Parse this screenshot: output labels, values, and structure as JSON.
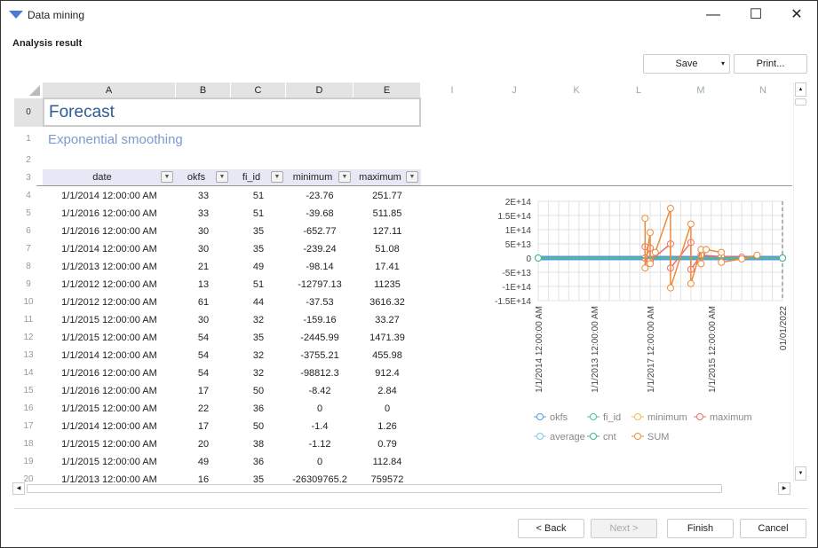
{
  "window": {
    "title": "Data mining",
    "minimize": "—",
    "maximize": "☐",
    "close": "✕"
  },
  "section_title": "Analysis result",
  "toolbar": {
    "save": "Save",
    "save_arrow": "▾",
    "print": "Print..."
  },
  "columns_active": [
    "A",
    "B",
    "C",
    "D",
    "E"
  ],
  "columns_inactive": [
    "I",
    "J",
    "K",
    "L",
    "M",
    "N"
  ],
  "sheet": {
    "title": "Forecast",
    "subtitle": "Exponential smoothing",
    "row_numbers": [
      "0",
      "1",
      "2",
      "3"
    ],
    "headers": [
      "date",
      "okfs",
      "fi_id",
      "minimum",
      "maximum"
    ],
    "rows": [
      [
        "4",
        "1/1/2014 12:00:00 AM",
        "33",
        "51",
        "-23.76",
        "251.77"
      ],
      [
        "5",
        "1/1/2016 12:00:00 AM",
        "33",
        "51",
        "-39.68",
        "511.85"
      ],
      [
        "6",
        "1/1/2016 12:00:00 AM",
        "30",
        "35",
        "-652.77",
        "127.11"
      ],
      [
        "7",
        "1/1/2014 12:00:00 AM",
        "30",
        "35",
        "-239.24",
        "51.08"
      ],
      [
        "8",
        "1/1/2013 12:00:00 AM",
        "21",
        "49",
        "-98.14",
        "17.41"
      ],
      [
        "9",
        "1/1/2012 12:00:00 AM",
        "13",
        "51",
        "-12797.13",
        "11235"
      ],
      [
        "10",
        "1/1/2012 12:00:00 AM",
        "61",
        "44",
        "-37.53",
        "3616.32"
      ],
      [
        "11",
        "1/1/2015 12:00:00 AM",
        "30",
        "32",
        "-159.16",
        "33.27"
      ],
      [
        "12",
        "1/1/2015 12:00:00 AM",
        "54",
        "35",
        "-2445.99",
        "1471.39"
      ],
      [
        "13",
        "1/1/2014 12:00:00 AM",
        "54",
        "32",
        "-3755.21",
        "455.98"
      ],
      [
        "14",
        "1/1/2016 12:00:00 AM",
        "54",
        "32",
        "-98812.3",
        "912.4"
      ],
      [
        "15",
        "1/1/2016 12:00:00 AM",
        "17",
        "50",
        "-8.42",
        "2.84"
      ],
      [
        "16",
        "1/1/2015 12:00:00 AM",
        "22",
        "36",
        "0",
        "0"
      ],
      [
        "17",
        "1/1/2014 12:00:00 AM",
        "17",
        "50",
        "-1.4",
        "1.26"
      ],
      [
        "18",
        "1/1/2015 12:00:00 AM",
        "20",
        "38",
        "-1.12",
        "0.79"
      ],
      [
        "19",
        "1/1/2015 12:00:00 AM",
        "49",
        "36",
        "0",
        "112.84"
      ],
      [
        "20",
        "1/1/2013 12:00:00 AM",
        "16",
        "35",
        "-26309765.2",
        "759572"
      ]
    ]
  },
  "chart_data": {
    "type": "line",
    "ylim": [
      -150000000000000.0,
      200000000000000.0
    ],
    "yticks": [
      "2E+14",
      "1.5E+14",
      "1E+14",
      "5E+13",
      "0",
      "-5E+13",
      "-1E+14",
      "-1.5E+14"
    ],
    "ytick_values": [
      200000000000000.0,
      150000000000000.0,
      100000000000000.0,
      50000000000000.0,
      0,
      -50000000000000.0,
      -100000000000000.0,
      -150000000000000.0
    ],
    "xticks": [
      "1/1/2014 12:00:00 AM",
      "1/1/2013 12:00:00 AM",
      "1/1/2017 12:00:00 AM",
      "1/1/2015 12:00:00 AM",
      "01/01/2022"
    ],
    "grid": true,
    "legend": "bottom",
    "series": [
      {
        "name": "okfs",
        "color": "#5b9bd5",
        "points": [
          [
            0,
            0
          ],
          [
            48,
            0
          ]
        ]
      },
      {
        "name": "fi_id",
        "color": "#4ec38f",
        "points": [
          [
            0,
            0
          ],
          [
            48,
            0
          ]
        ]
      },
      {
        "name": "minimum",
        "color": "#f0c04a",
        "points": [
          [
            0,
            0
          ],
          [
            48,
            0
          ]
        ]
      },
      {
        "name": "maximum",
        "color": "#f26b6b",
        "points": [
          [
            21,
            40000000000000.0
          ],
          [
            21,
            0
          ],
          [
            22,
            35000000000000.0
          ],
          [
            22,
            -10000000000000.0
          ],
          [
            26,
            50000000000000.0
          ],
          [
            26,
            -35000000000000.0
          ],
          [
            30,
            55000000000000.0
          ],
          [
            30,
            -40000000000000.0
          ],
          [
            32,
            10000000000000.0
          ],
          [
            36,
            5000000000000.0
          ],
          [
            40,
            3000000000000.0
          ]
        ]
      },
      {
        "name": "average",
        "color": "#7ec8ec",
        "points": [
          [
            0,
            0
          ],
          [
            48,
            0
          ]
        ]
      },
      {
        "name": "cnt",
        "color": "#3fb58e",
        "points": [
          [
            0,
            0
          ],
          [
            48,
            0
          ]
        ]
      },
      {
        "name": "SUM",
        "color": "#ed8b3a",
        "points": [
          [
            21,
            140000000000000.0
          ],
          [
            21,
            -35000000000000.0
          ],
          [
            22,
            90000000000000.0
          ],
          [
            22,
            -20000000000000.0
          ],
          [
            23,
            20000000000000.0
          ],
          [
            26,
            175000000000000.0
          ],
          [
            26,
            -105000000000000.0
          ],
          [
            30,
            120000000000000.0
          ],
          [
            30,
            -90000000000000.0
          ],
          [
            32,
            30000000000000.0
          ],
          [
            32,
            -20000000000000.0
          ],
          [
            33,
            30000000000000.0
          ],
          [
            36,
            20000000000000.0
          ],
          [
            36,
            -15000000000000.0
          ],
          [
            40,
            -3000000000000.0
          ],
          [
            43,
            10000000000000.0
          ]
        ]
      }
    ]
  },
  "footer": {
    "back": "< Back",
    "next": "Next >",
    "finish": "Finish",
    "cancel": "Cancel"
  }
}
